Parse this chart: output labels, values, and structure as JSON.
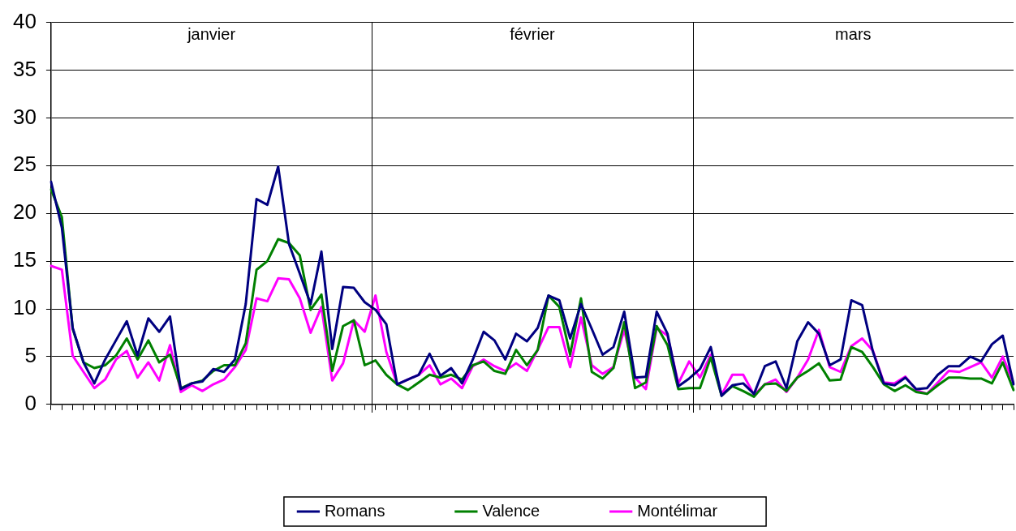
{
  "chart_data": {
    "type": "line",
    "categories": [
      null,
      null,
      null,
      null,
      null,
      null,
      null,
      null,
      null,
      null,
      null,
      null,
      null,
      null,
      null,
      null,
      null,
      null,
      null,
      null,
      null,
      null,
      null,
      null,
      null,
      null,
      null,
      null,
      null,
      null,
      null,
      null,
      null,
      null,
      null,
      null,
      null,
      null,
      null,
      null,
      null,
      null,
      null,
      null,
      null,
      null,
      null,
      null,
      null,
      null,
      null,
      null,
      null,
      null,
      null,
      null,
      null,
      null,
      null,
      null,
      null,
      null,
      null,
      null,
      null,
      null,
      null,
      null,
      null,
      null,
      null,
      null,
      null,
      null,
      null,
      null,
      null,
      null,
      null,
      null,
      null,
      null,
      null,
      null,
      null,
      null,
      null,
      null,
      null,
      null
    ],
    "series": [
      {
        "name": "Romans",
        "color": "#000080",
        "values": [
          23.3,
          18.5,
          8.0,
          4.4,
          2.2,
          4.7,
          6.7,
          8.7,
          5.1,
          9.0,
          7.6,
          9.2,
          1.6,
          2.2,
          2.4,
          3.7,
          3.4,
          4.7,
          10.5,
          21.5,
          20.9,
          24.9,
          16.8,
          13.7,
          10.5,
          16.0,
          5.8,
          12.3,
          12.2,
          10.7,
          9.9,
          8.4,
          2.1,
          2.6,
          3.1,
          5.3,
          3.0,
          3.8,
          2.2,
          4.7,
          7.6,
          6.7,
          4.7,
          7.4,
          6.6,
          8.0,
          11.4,
          10.9,
          6.9,
          10.5,
          7.9,
          5.2,
          6.0,
          9.7,
          2.8,
          2.9,
          9.7,
          7.4,
          1.9,
          2.7,
          3.7,
          6.0,
          0.9,
          2.0,
          2.2,
          1.1,
          4.0,
          4.5,
          1.7,
          6.6,
          8.6,
          7.4,
          4.1,
          4.7,
          10.9,
          10.4,
          5.5,
          2.2,
          2.0,
          2.8,
          1.6,
          1.7,
          3.1,
          4.0,
          4.0,
          5.0,
          4.5,
          6.3,
          7.2,
          2.1
        ]
      },
      {
        "name": "Valence",
        "color": "#008000",
        "values": [
          22.5,
          19.6,
          7.9,
          4.4,
          3.8,
          4.1,
          5.1,
          6.9,
          4.7,
          6.7,
          4.4,
          5.2,
          1.7,
          2.2,
          2.5,
          3.5,
          4.1,
          4.1,
          6.4,
          14.1,
          15.0,
          17.3,
          16.9,
          15.6,
          9.9,
          11.5,
          3.5,
          8.2,
          8.8,
          4.1,
          4.6,
          3.1,
          2.1,
          1.5,
          2.3,
          3.1,
          2.8,
          3.1,
          2.6,
          4.1,
          4.5,
          3.5,
          3.2,
          5.7,
          4.1,
          5.7,
          11.4,
          10.2,
          5.2,
          11.1,
          3.4,
          2.7,
          3.8,
          8.6,
          1.7,
          2.3,
          8.2,
          6.2,
          1.6,
          1.7,
          1.7,
          4.9,
          0.9,
          1.9,
          1.4,
          0.8,
          2.1,
          2.2,
          1.4,
          2.8,
          3.5,
          4.3,
          2.5,
          2.6,
          6.0,
          5.5,
          3.9,
          2.1,
          1.4,
          2.0,
          1.3,
          1.1,
          2.0,
          2.8,
          2.8,
          2.7,
          2.7,
          2.2,
          4.4,
          1.5
        ]
      },
      {
        "name": "Montélimar",
        "color": "#ff00ff",
        "values": [
          14.5,
          14.1,
          5.1,
          3.4,
          1.7,
          2.6,
          4.7,
          5.6,
          2.8,
          4.4,
          2.5,
          6.2,
          1.3,
          2.0,
          1.4,
          2.1,
          2.6,
          3.9,
          5.7,
          11.1,
          10.8,
          13.2,
          13.1,
          11.1,
          7.5,
          10.2,
          2.5,
          4.3,
          8.8,
          7.6,
          11.4,
          5.5,
          2.1,
          2.6,
          3.1,
          4.1,
          2.1,
          2.7,
          1.7,
          4.0,
          4.7,
          4.0,
          3.5,
          4.3,
          3.5,
          5.7,
          8.1,
          8.1,
          3.9,
          9.1,
          4.1,
          3.2,
          3.9,
          7.8,
          2.8,
          1.6,
          8.0,
          7.2,
          2.2,
          4.5,
          2.8,
          5.2,
          1.0,
          3.1,
          3.1,
          1.0,
          2.1,
          2.6,
          1.3,
          2.8,
          4.7,
          7.8,
          3.9,
          3.4,
          6.1,
          6.9,
          5.6,
          2.3,
          2.2,
          2.9,
          1.5,
          1.1,
          2.3,
          3.5,
          3.4,
          3.9,
          4.4,
          2.8,
          5.0,
          2.2
        ]
      }
    ],
    "ylim": [
      0,
      40
    ],
    "yticks": [
      0,
      5,
      10,
      15,
      20,
      25,
      30,
      35,
      40
    ],
    "grid": "y",
    "legend": "bottom",
    "marker": "none",
    "line_style": "solid",
    "annotations": [
      "janvier",
      "février",
      "mars"
    ]
  }
}
